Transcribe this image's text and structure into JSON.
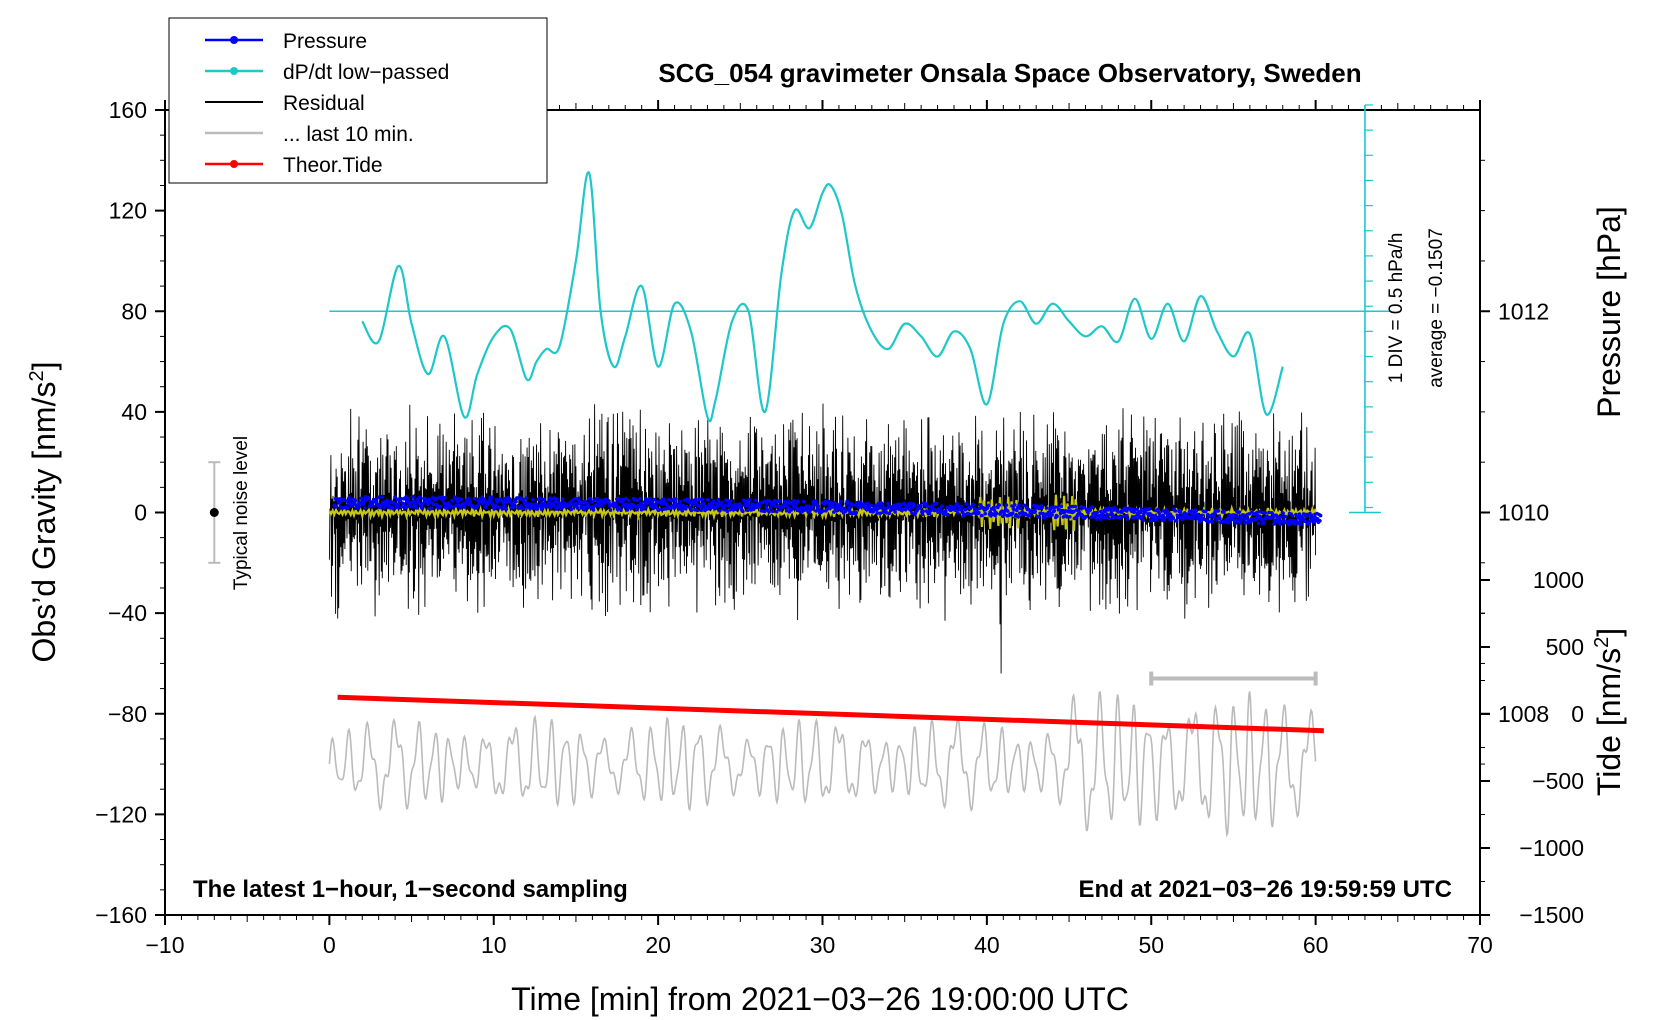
{
  "chart_data": {
    "type": "line",
    "title": "SCG_054 gravimeter Onsala Space Observatory, Sweden",
    "xlabel": "Time [min] from 2021−03−26 19:00:00 UTC",
    "ylabel": "Obs’d Gravity [nm/s",
    "ylabel_sup": "2",
    "ylabel_end": "]",
    "y2label_pressure": "Pressure [hPa]",
    "y2label_tide": "Tide [nm/s",
    "y2label_tide_sup": "2",
    "y2label_tide_end": "]",
    "xlim": [
      -10,
      70
    ],
    "ylim": [
      -160,
      160
    ],
    "x_ticks": [
      "−10",
      "0",
      "10",
      "20",
      "30",
      "40",
      "50",
      "60",
      "70"
    ],
    "y_ticks": [
      "160",
      "120",
      "80",
      "40",
      "0",
      "−40",
      "−80",
      "−120",
      "−160"
    ],
    "pressure_axis": {
      "range": [
        1006,
        1014
      ],
      "ticks": [
        "1012",
        "1010",
        "1008"
      ]
    },
    "tide_axis": {
      "range": [
        -1500,
        1000
      ],
      "ticks": [
        "1000",
        "500",
        "0",
        "−500",
        "−1000",
        "−1500"
      ]
    },
    "legend": [
      {
        "label": "Pressure",
        "color": "#0000ff",
        "marker": true
      },
      {
        "label": "dP/dt low−passed",
        "color": "#1ec8c8",
        "marker": true
      },
      {
        "label": "Residual",
        "color": "#000000",
        "marker": false
      },
      {
        "label": "... last 10 min.",
        "color": "#bbbbbb",
        "marker": false
      },
      {
        "label": "Theor.Tide",
        "color": "#ff0000",
        "marker": true
      }
    ],
    "series": [
      {
        "name": "Pressure",
        "axis": "pressure",
        "color": "#0000ff",
        "x_range": [
          0.3,
          60.3
        ],
        "start": 1010.1,
        "end": 1009.93,
        "hump": 0.04,
        "noise": 0.06
      },
      {
        "name": "dP/dt low−passed",
        "axis": "gravity",
        "color": "#1ec8c8",
        "baseline": 80,
        "x": [
          2,
          3,
          4.2,
          5,
          6,
          7,
          8.2,
          9,
          10,
          11,
          12,
          12.6,
          13.2,
          14,
          15,
          15.8,
          16.5,
          17.3,
          18,
          19,
          20,
          21,
          22,
          23,
          23.5,
          24.5,
          25.5,
          26.5,
          27.5,
          28.3,
          29.2,
          30,
          30.5,
          31.2,
          32,
          33,
          34,
          35,
          36,
          37,
          38,
          39,
          40,
          41,
          42,
          43,
          44,
          45,
          46,
          47,
          48,
          49,
          50,
          51,
          52,
          53,
          54,
          55,
          56,
          57,
          58
        ],
        "y": [
          76,
          68,
          98,
          75,
          55,
          70,
          38,
          55,
          70,
          73,
          53,
          60,
          65,
          66,
          100,
          135,
          80,
          58,
          70,
          90,
          58,
          83,
          72,
          38,
          45,
          76,
          80,
          40,
          95,
          120,
          113,
          127,
          130,
          118,
          90,
          72,
          65,
          75,
          70,
          62,
          72,
          65,
          43,
          75,
          84,
          75,
          83,
          76,
          70,
          74,
          68,
          85,
          69,
          83,
          68,
          86,
          72,
          62,
          71,
          39,
          58
        ]
      },
      {
        "name": "Residual",
        "axis": "gravity",
        "color": "#000000",
        "x_range": [
          0,
          60
        ],
        "amplitude": 28,
        "extremes": {
          "min": -64,
          "max": 52
        }
      },
      {
        "name": "Residual smoothed",
        "axis": "gravity",
        "color": "#c8c814",
        "x_range": [
          0,
          60
        ],
        "value": 0
      },
      {
        "name": "... last 10 min.",
        "axis": "gravity",
        "color": "#bbbbbb",
        "x_range": [
          0,
          60
        ],
        "center": -100,
        "amplitude": 14,
        "range": [
          -136,
          -62
        ]
      },
      {
        "name": "Theor.Tide",
        "axis": "tide",
        "color": "#ff0000",
        "x": [
          0.5,
          60.5
        ],
        "y": [
          125,
          -125
        ]
      }
    ],
    "noise_bar": {
      "label": "Typical noise level",
      "x": -7,
      "center": 0,
      "low": -20,
      "high": 20
    },
    "window_bar": {
      "x_start": 50,
      "x_end": 60,
      "y": -66
    },
    "pressure_scale": {
      "x": 63,
      "y_top": 162,
      "y_bottom": 0,
      "label": "1 DIV = 0.5 hPa/h",
      "average": "average = −0.1507"
    },
    "annotations": {
      "bottom_left": "The latest 1−hour, 1−second sampling",
      "bottom_right": "End at 2021−03−26 19:59:59 UTC"
    }
  }
}
